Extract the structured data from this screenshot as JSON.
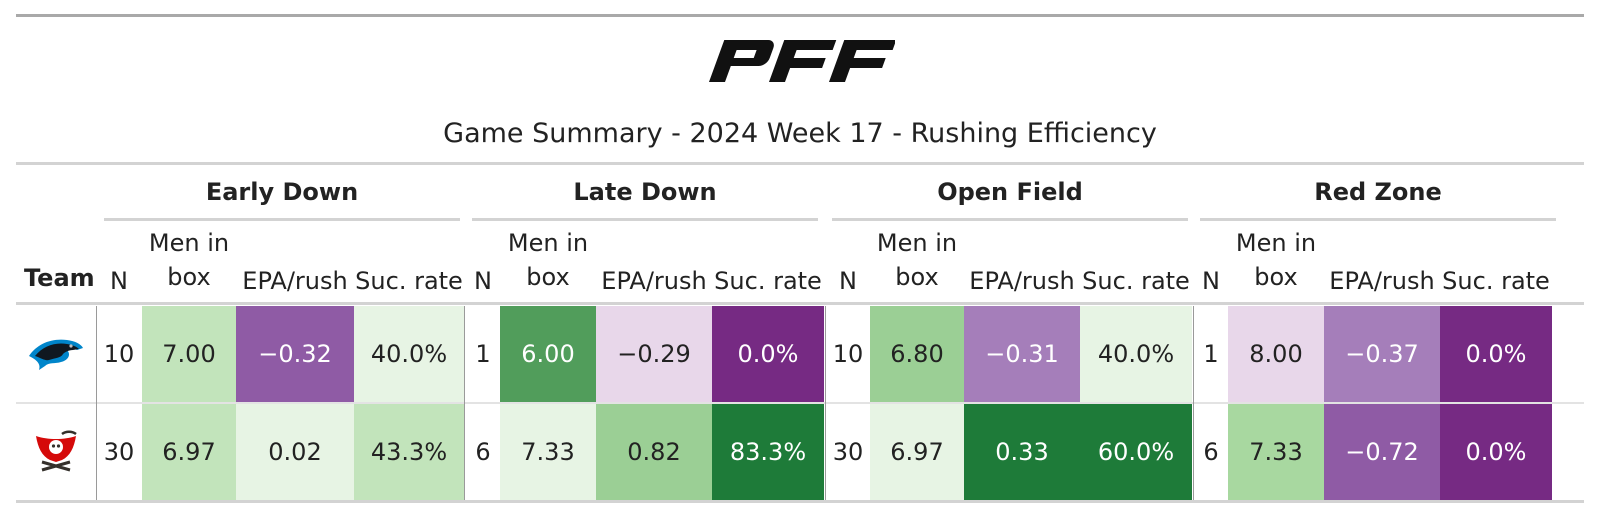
{
  "header": {
    "logo_text": "PFF",
    "title": "Game Summary - 2024 Week 17 - Rushing Efficiency"
  },
  "table": {
    "team_header": "Team",
    "groups": [
      "Early Down",
      "Late Down",
      "Open Field",
      "Red Zone"
    ],
    "columns": [
      "N",
      "Men in box",
      "EPA/rush",
      "Suc. rate"
    ],
    "columns_display": {
      "n": "N",
      "men_line1": "Men in",
      "men_line2": "box",
      "epa": "EPA/rush",
      "suc": "Suc. rate"
    },
    "rows": [
      {
        "team": "Carolina Panthers",
        "team_icon": "panthers-logo-icon",
        "cells": [
          {
            "n": "10",
            "men": "7.00",
            "epa": "−0.32",
            "suc": "40.0%"
          },
          {
            "n": "1",
            "men": "6.00",
            "epa": "−0.29",
            "suc": "0.0%"
          },
          {
            "n": "10",
            "men": "6.80",
            "epa": "−0.31",
            "suc": "40.0%"
          },
          {
            "n": "1",
            "men": "8.00",
            "epa": "−0.37",
            "suc": "0.0%"
          }
        ]
      },
      {
        "team": "Tampa Bay Buccaneers",
        "team_icon": "buccaneers-logo-icon",
        "cells": [
          {
            "n": "30",
            "men": "6.97",
            "epa": "0.02",
            "suc": "43.3%"
          },
          {
            "n": "6",
            "men": "7.33",
            "epa": "0.82",
            "suc": "83.3%"
          },
          {
            "n": "30",
            "men": "6.97",
            "epa": "0.33",
            "suc": "60.0%"
          },
          {
            "n": "6",
            "men": "7.33",
            "epa": "−0.72",
            "suc": "0.0%"
          }
        ]
      }
    ]
  },
  "colors": {
    "dark_green": "#1e7b39",
    "mid_green": "#519d5b",
    "light_green": "#9bcf95",
    "pale_green": "#c2e4bb",
    "faint_green": "#e7f4e4",
    "dark_purple": "#762a83",
    "mid_purple": "#8f5ba5",
    "light_purple": "#a57eba",
    "faint_purple": "#e8d7ea"
  }
}
